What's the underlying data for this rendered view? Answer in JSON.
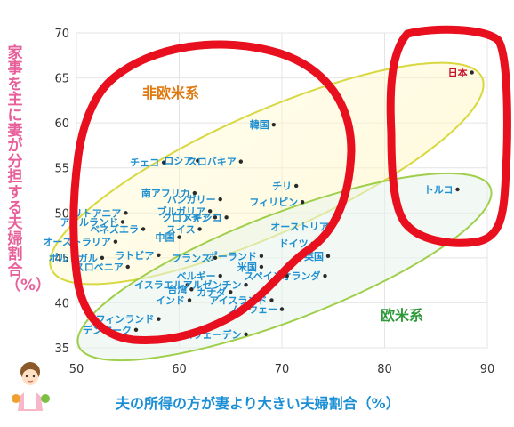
{
  "chart_data": {
    "type": "scatter",
    "xlabel": "夫の所得の方が妻より大きい夫婦割合（%）",
    "ylabel": "家事を主に妻が分担する夫婦割合（%）",
    "xlim": [
      50,
      90
    ],
    "ylim": [
      35,
      70
    ],
    "x_ticks": [
      50,
      60,
      70,
      80,
      90
    ],
    "y_ticks": [
      35,
      40,
      45,
      50,
      55,
      60,
      65,
      70
    ],
    "grid": true,
    "group_labels": [
      "非欧米系",
      "欧米系"
    ],
    "colors": {
      "points": "#2a2a2a",
      "labels": "#1e8fd0",
      "japan": "#c8102e",
      "group_non_western": "#e07a10",
      "group_western": "#2e9a3a",
      "axis_x": "#1b8fd6",
      "axis_y": "#e8609a",
      "red_marker": "#e8101e"
    },
    "points": [
      {
        "name": "日本",
        "x": 88.5,
        "y": 65.6
      },
      {
        "name": "トルコ",
        "x": 87.1,
        "y": 52.6
      },
      {
        "name": "韓国",
        "x": 69.2,
        "y": 59.8
      },
      {
        "name": "チェコ",
        "x": 58.5,
        "y": 55.6
      },
      {
        "name": "ロシア",
        "x": 61.8,
        "y": 55.8
      },
      {
        "name": "スロバキア",
        "x": 66.0,
        "y": 55.7
      },
      {
        "name": "チリ",
        "x": 71.4,
        "y": 53.0
      },
      {
        "name": "南アフリカ",
        "x": 61.5,
        "y": 52.2
      },
      {
        "name": "ハンガリー",
        "x": 64.0,
        "y": 51.5
      },
      {
        "name": "ブルガリア",
        "x": 63.0,
        "y": 50.2
      },
      {
        "name": "フィリピン",
        "x": 72.0,
        "y": 51.2
      },
      {
        "name": "リトアニア",
        "x": 54.8,
        "y": 50.0
      },
      {
        "name": "クロアチア",
        "x": 63.5,
        "y": 49.5
      },
      {
        "name": "メキシコ",
        "x": 64.6,
        "y": 49.5
      },
      {
        "name": "アイルランド",
        "x": 54.5,
        "y": 49.0
      },
      {
        "name": "ベネズエラ",
        "x": 56.5,
        "y": 48.2
      },
      {
        "name": "中国",
        "x": 60.0,
        "y": 47.3
      },
      {
        "name": "スイス",
        "x": 62.0,
        "y": 48.2
      },
      {
        "name": "オーストラリア",
        "x": 53.8,
        "y": 46.8
      },
      {
        "name": "オーストリア",
        "x": 75.0,
        "y": 48.5
      },
      {
        "name": "ラトビア",
        "x": 58.0,
        "y": 45.3
      },
      {
        "name": "ドイツ",
        "x": 73.0,
        "y": 46.6
      },
      {
        "name": "ポルトガル",
        "x": 52.5,
        "y": 45.0
      },
      {
        "name": "ポーランド",
        "x": 68.0,
        "y": 45.2
      },
      {
        "name": "英国",
        "x": 74.5,
        "y": 45.2
      },
      {
        "name": "スロベニア",
        "x": 55.0,
        "y": 44.0
      },
      {
        "name": "フランス",
        "x": 63.5,
        "y": 45.0
      },
      {
        "name": "米国",
        "x": 68.0,
        "y": 44.0
      },
      {
        "name": "オランダ",
        "x": 74.2,
        "y": 43.0
      },
      {
        "name": "ベルギー",
        "x": 64.0,
        "y": 43.0
      },
      {
        "name": "スペイン",
        "x": 70.5,
        "y": 43.0
      },
      {
        "name": "イスラエル",
        "x": 60.8,
        "y": 42.0
      },
      {
        "name": "アルゼンチン",
        "x": 66.5,
        "y": 42.0
      },
      {
        "name": "台湾",
        "x": 61.2,
        "y": 41.5
      },
      {
        "name": "カナダ",
        "x": 65.0,
        "y": 41.2
      },
      {
        "name": "アイスランド",
        "x": 69.0,
        "y": 40.3
      },
      {
        "name": "インド",
        "x": 61.0,
        "y": 40.3
      },
      {
        "name": "ノルウェー",
        "x": 70.0,
        "y": 39.3
      },
      {
        "name": "フィンランド",
        "x": 58.0,
        "y": 38.2
      },
      {
        "name": "デンマーク",
        "x": 55.8,
        "y": 37.0
      },
      {
        "name": "スウェーデン",
        "x": 66.5,
        "y": 36.5
      }
    ]
  }
}
